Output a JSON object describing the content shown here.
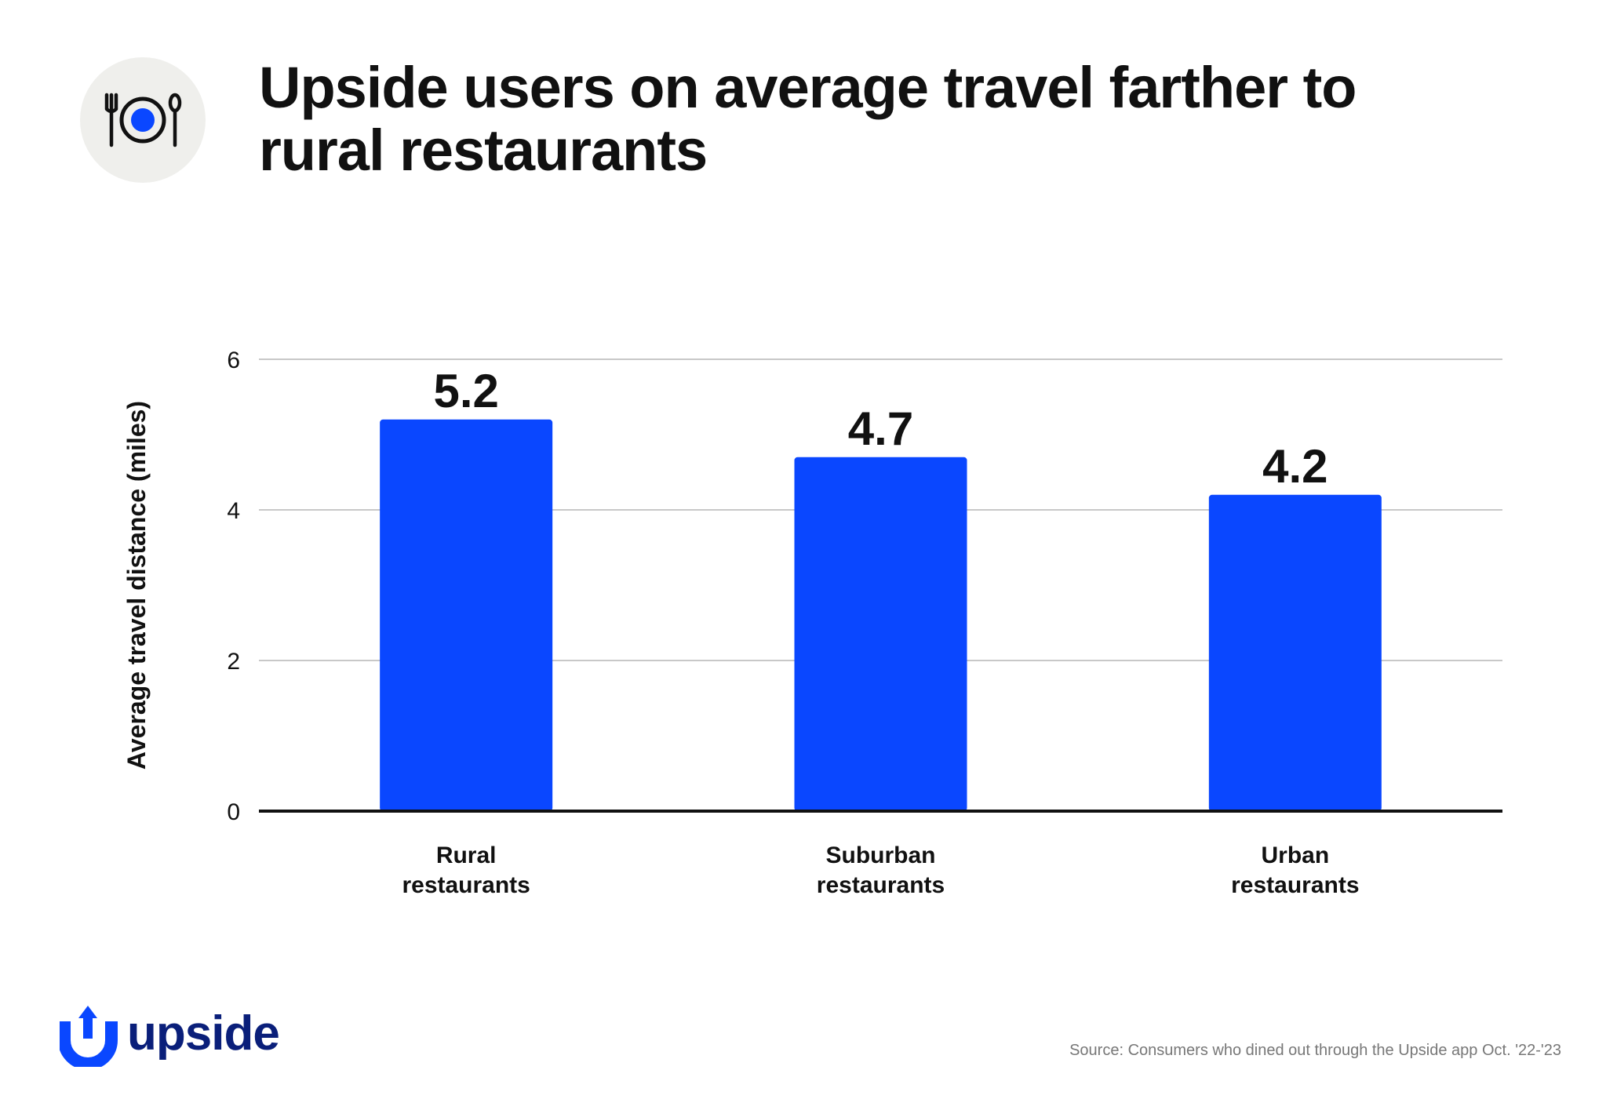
{
  "header": {
    "icon": "plate-fork-knife-icon",
    "title_lines": [
      "Upside users on average travel farther to",
      "rural restaurants"
    ]
  },
  "chart_data": {
    "type": "bar",
    "categories": [
      [
        "Rural",
        "restaurants"
      ],
      [
        "Suburban",
        "restaurants"
      ],
      [
        "Urban",
        "restaurants"
      ]
    ],
    "values": [
      5.2,
      4.7,
      4.2
    ],
    "data_labels": [
      "5.2",
      "4.7",
      "4.2"
    ],
    "ylabel": "Average travel distance (miles)",
    "ylim": [
      0,
      6
    ],
    "yticks": [
      0,
      2,
      4,
      6
    ],
    "grid": true,
    "colors": {
      "bar": "#0a47ff",
      "grid": "#c8c8c8",
      "axis": "#111111",
      "text": "#111111"
    }
  },
  "footer": {
    "logo_icon": "upside-logo-icon",
    "brand_name": "upside",
    "brand_color": "#0a1f7a",
    "logo_color": "#0a47ff",
    "source": "Source: Consumers who dined out through the Upside app Oct. '22-'23"
  }
}
